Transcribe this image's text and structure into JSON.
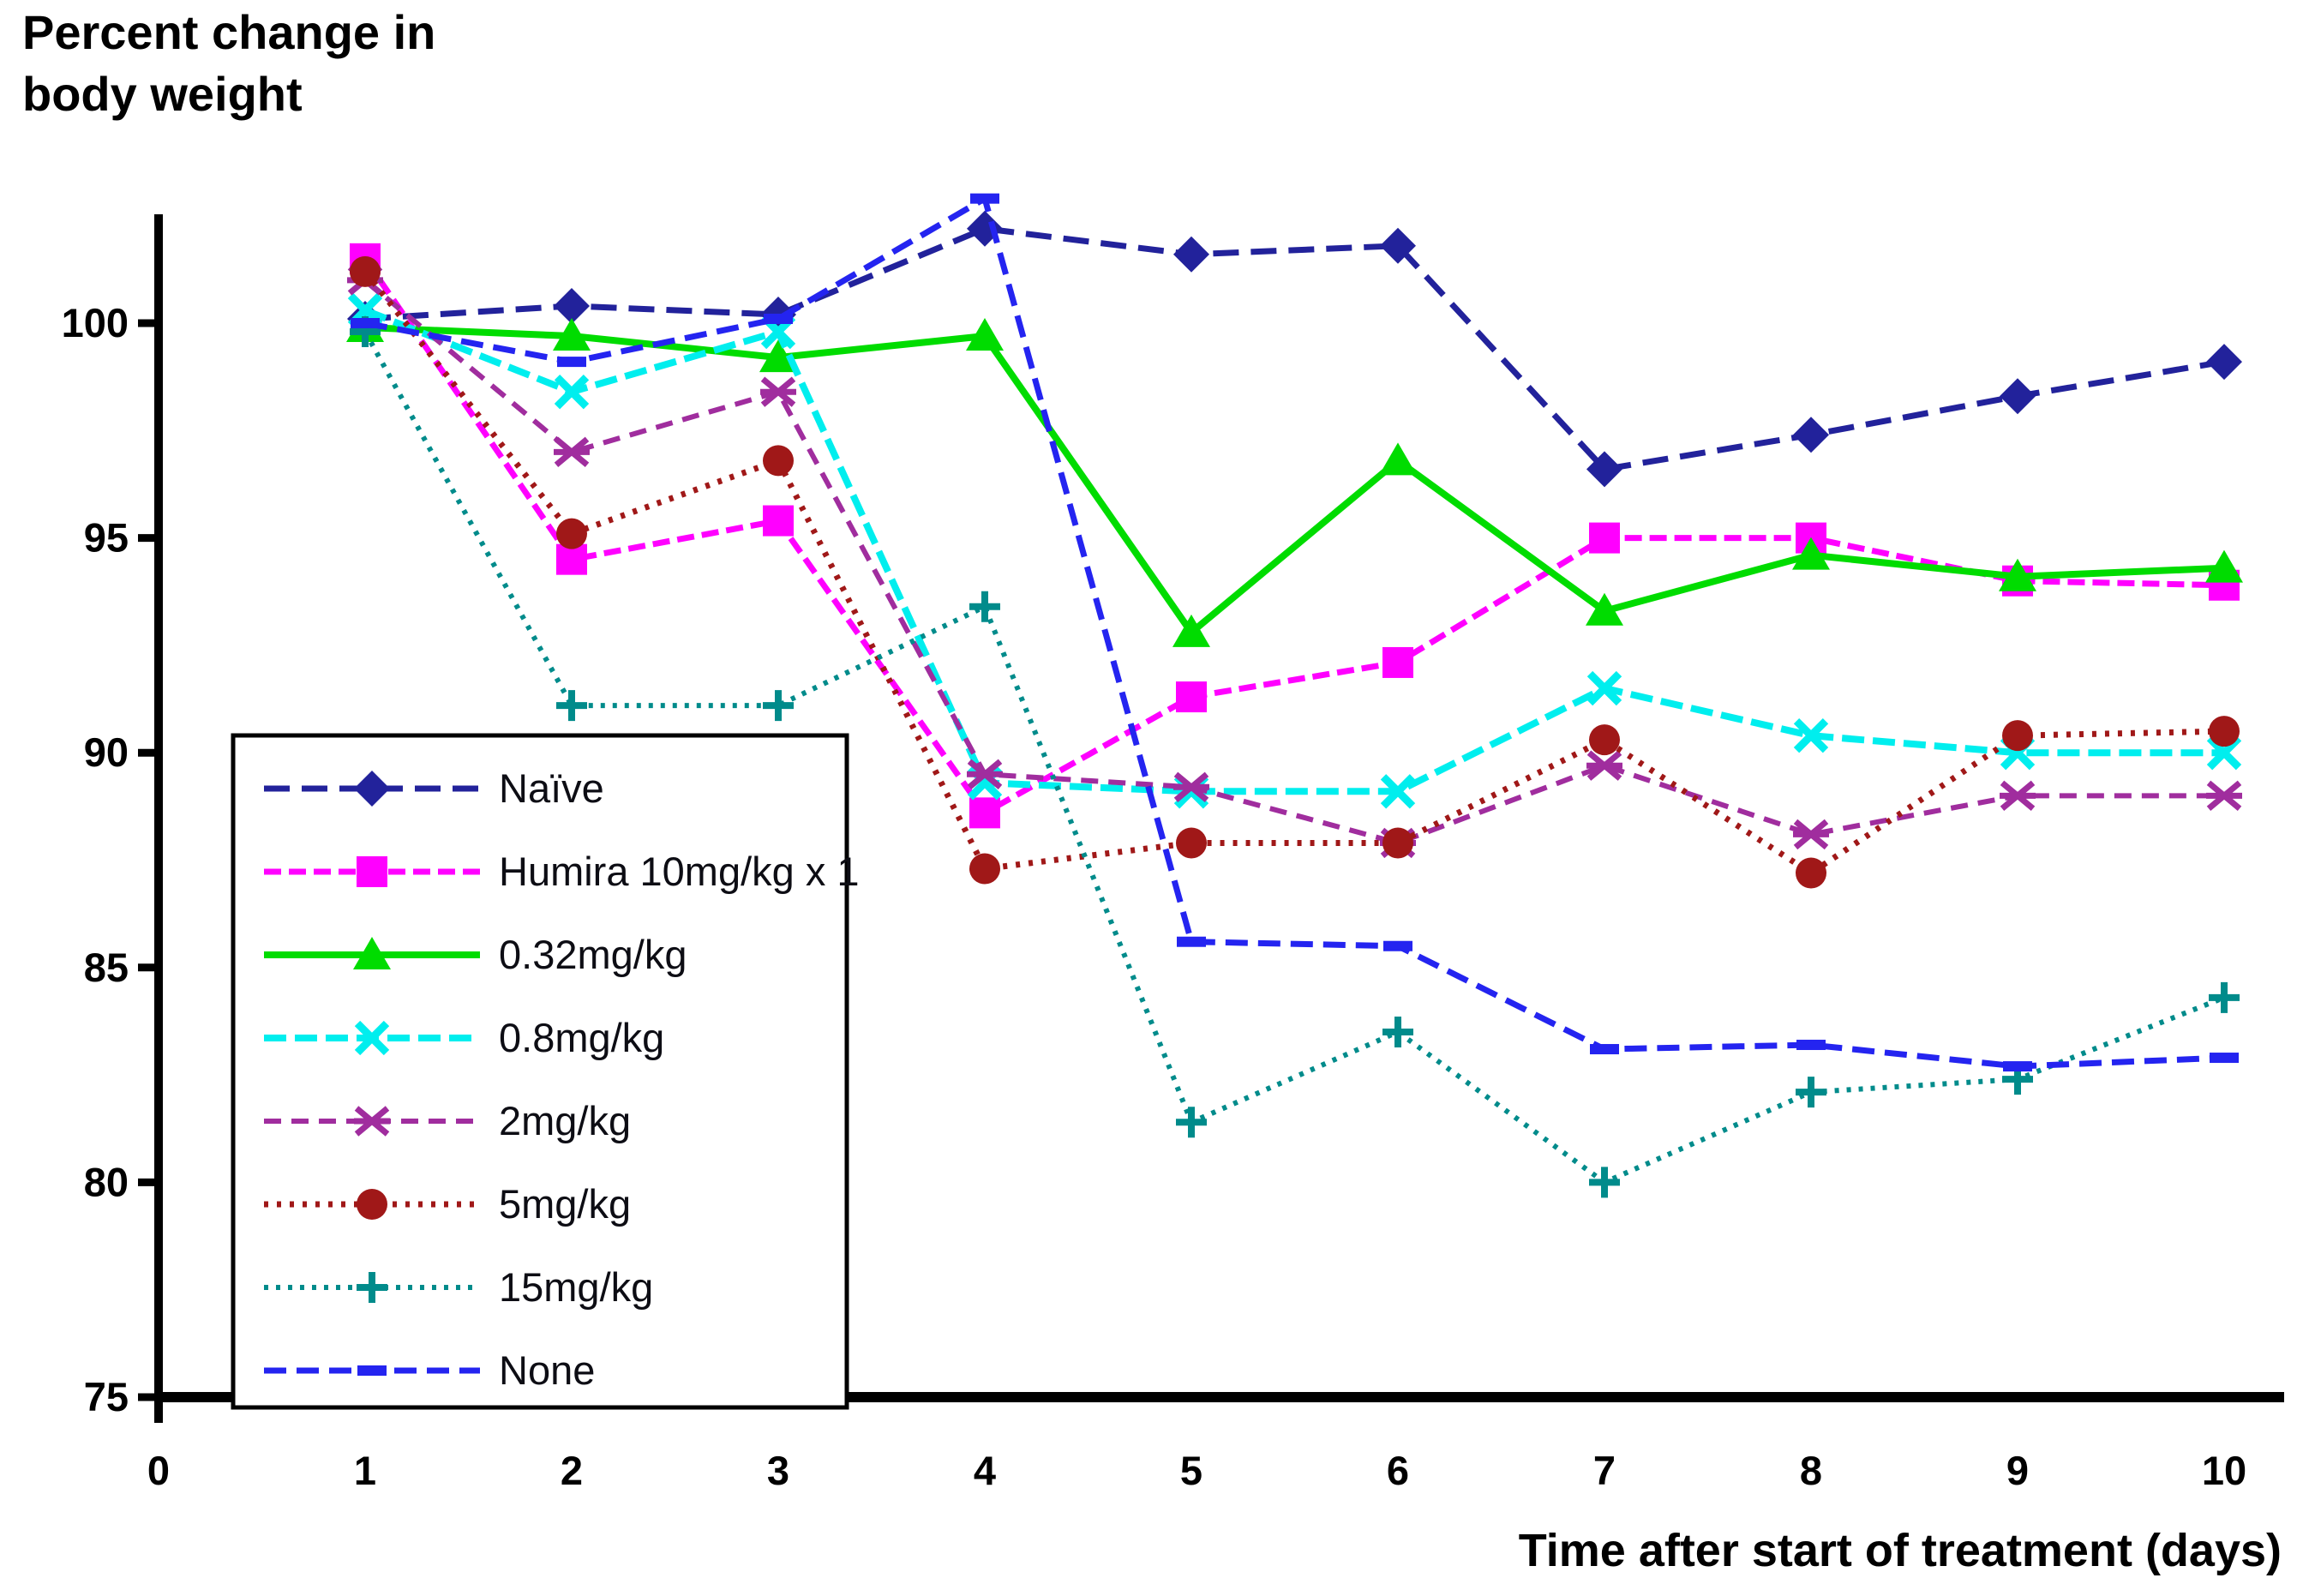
{
  "page": {
    "background": "#ffffff"
  },
  "chart_data": {
    "type": "line",
    "title_line1": "Percent change in",
    "title_line2": "body weight",
    "xlabel": "Time after start of treatment (days)",
    "x_axis": {
      "ticks": [
        0,
        1,
        2,
        3,
        4,
        5,
        6,
        7,
        8,
        9,
        10
      ],
      "range": [
        0,
        10.3
      ]
    },
    "y_axis": {
      "ticks": [
        75,
        80,
        85,
        90,
        95,
        100
      ],
      "range": [
        75,
        103.2
      ]
    },
    "grid": false,
    "legend_position": "inside-lower-left",
    "x": [
      1,
      2,
      3,
      4,
      5,
      6,
      7,
      8,
      9,
      10
    ],
    "series": [
      {
        "name": "Naïve",
        "color": "#22229B",
        "marker": "diamond",
        "values": [
          100.1,
          100.4,
          100.2,
          102.2,
          101.6,
          101.8,
          96.6,
          97.4,
          98.3,
          99.1
        ]
      },
      {
        "name": "Humira 10mg/kg x 1",
        "color": "#FF00FF",
        "marker": "square",
        "values": [
          101.5,
          94.5,
          95.4,
          88.6,
          91.3,
          92.1,
          95.0,
          95.0,
          94.0,
          93.9
        ]
      },
      {
        "name": "0.32mg/kg",
        "color": "#00DC00",
        "marker": "triangle",
        "values": [
          99.9,
          99.7,
          99.2,
          99.7,
          92.8,
          96.8,
          93.3,
          94.6,
          94.1,
          94.3
        ]
      },
      {
        "name": "0.8mg/kg",
        "color": "#00EEEE",
        "marker": "x",
        "values": [
          100.3,
          98.4,
          99.8,
          89.3,
          89.1,
          89.1,
          91.5,
          90.4,
          90.0,
          90.0
        ]
      },
      {
        "name": "2mg/kg",
        "color": "#A02D9E",
        "marker": "asterisk",
        "values": [
          101.0,
          97.0,
          98.4,
          89.5,
          89.2,
          87.9,
          89.7,
          88.1,
          89.0,
          89.0
        ]
      },
      {
        "name": "5mg/kg",
        "color": "#A01818",
        "marker": "circle",
        "values": [
          101.2,
          95.1,
          96.8,
          87.3,
          87.9,
          87.9,
          90.3,
          87.2,
          90.4,
          90.5
        ]
      },
      {
        "name": "15mg/kg",
        "color": "#008B8B",
        "marker": "plus",
        "values": [
          99.8,
          91.1,
          91.1,
          93.4,
          81.4,
          83.5,
          80.0,
          82.1,
          82.4,
          84.3
        ]
      },
      {
        "name": "None",
        "color": "#2424F0",
        "marker": "dash",
        "values": [
          100.0,
          99.1,
          100.1,
          102.9,
          85.6,
          85.5,
          83.1,
          83.2,
          82.7,
          82.9
        ]
      }
    ]
  }
}
